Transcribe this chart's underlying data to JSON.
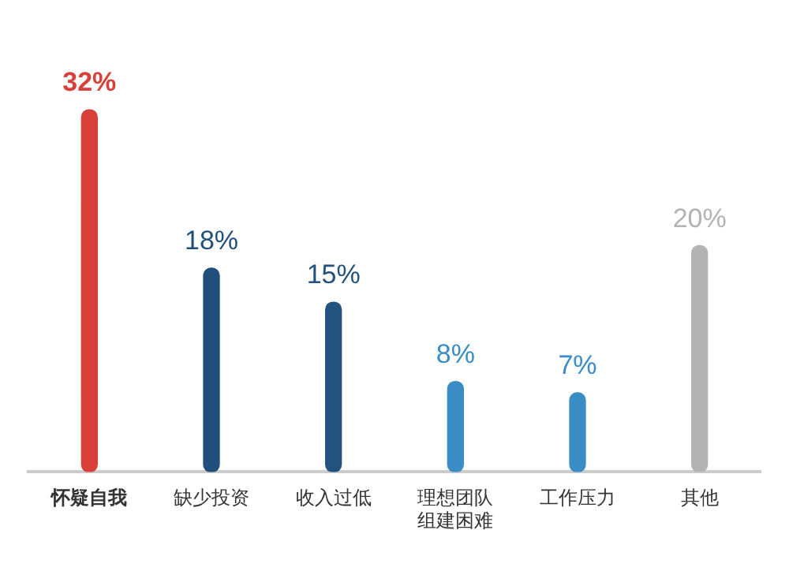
{
  "chart_data": {
    "type": "bar",
    "categories": [
      "怀疑自我",
      "缺少投资",
      "收入过低",
      "理想团队组建困难",
      "工作压力",
      "其他"
    ],
    "values": [
      32,
      18,
      15,
      8,
      7,
      20
    ],
    "colors": [
      "#d9403a",
      "#1f4f7a",
      "#23527e",
      "#3a8cc4",
      "#3a8cc4",
      "#b3b3b3"
    ],
    "value_labels": [
      "32%",
      "18%",
      "15%",
      "8%",
      "7%",
      "20%"
    ],
    "grid": false,
    "legend": false
  }
}
